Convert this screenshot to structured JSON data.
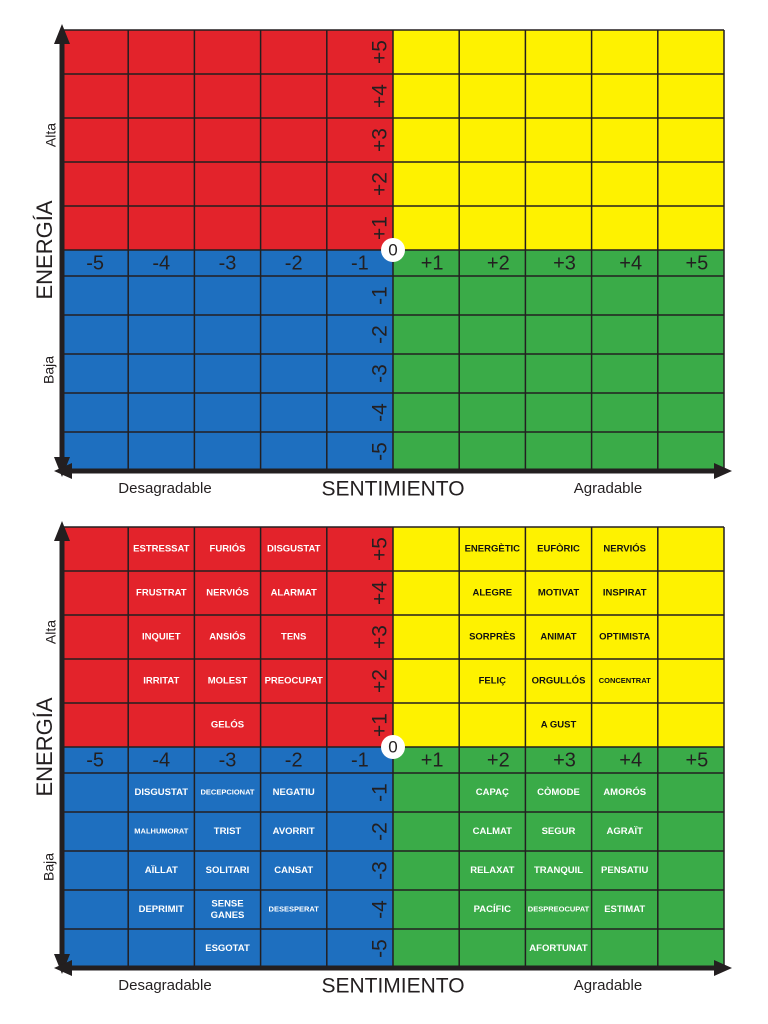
{
  "axes": {
    "x_labels": [
      "-5",
      "-4",
      "-3",
      "-2",
      "-1",
      "+1",
      "+2",
      "+3",
      "+4",
      "+5"
    ],
    "y_upper": [
      "+5",
      "+4",
      "+3",
      "+2",
      "+1"
    ],
    "y_lower": [
      "-1",
      "-2",
      "-3",
      "-4",
      "-5"
    ],
    "origin": "0",
    "y_title": "ENERGÍA",
    "y_high": "Alta",
    "y_low": "Baja",
    "x_title": "SENTIMIENTO",
    "x_low": "Desagradable",
    "x_high": "Agradable"
  },
  "emotions": {
    "upper": [
      [
        null,
        "ESTRESSAT",
        "FURIÓS",
        "DISGUSTAT",
        null,
        null,
        "ENERGÈTIC",
        "EUFÒRIC",
        "NERVIÓS",
        null
      ],
      [
        null,
        "FRUSTRAT",
        "NERVIÓS",
        "ALARMAT",
        null,
        null,
        "ALEGRE",
        "MOTIVAT",
        "INSPIRAT",
        null
      ],
      [
        null,
        "INQUIET",
        "ANSIÓS",
        "TENS",
        null,
        null,
        "SORPRÈS",
        "ANIMAT",
        "OPTIMISTA",
        null
      ],
      [
        null,
        "IRRITAT",
        "MOLEST",
        "PREOCUPAT",
        null,
        null,
        "FELIÇ",
        "ORGULLÓS",
        "CONCENTRAT",
        null
      ],
      [
        null,
        null,
        "GELÓS",
        null,
        null,
        null,
        null,
        "A GUST",
        null,
        null
      ]
    ],
    "lower": [
      [
        null,
        "DISGUSTAT",
        "DECEPCIONAT",
        "NEGATIU",
        null,
        null,
        "CAPAÇ",
        "CÒMODE",
        "AMORÓS",
        null
      ],
      [
        null,
        "MALHUMORAT",
        "TRIST",
        "AVORRIT",
        null,
        null,
        "CALMAT",
        "SEGUR",
        "AGRAÏT",
        null
      ],
      [
        null,
        "AÏLLAT",
        "SOLITARI",
        "CANSAT",
        null,
        null,
        "RELAXAT",
        "TRANQUIL",
        "PENSATIU",
        null
      ],
      [
        null,
        "DEPRIMIT",
        [
          "SENSE",
          "GANES"
        ],
        "DESESPERAT",
        null,
        null,
        "PACÍFIC",
        "DESPREOCUPAT",
        "ESTIMAT",
        null
      ],
      [
        null,
        null,
        "ESGOTAT",
        null,
        null,
        null,
        null,
        "AFORTUNAT",
        null,
        null
      ]
    ]
  }
}
